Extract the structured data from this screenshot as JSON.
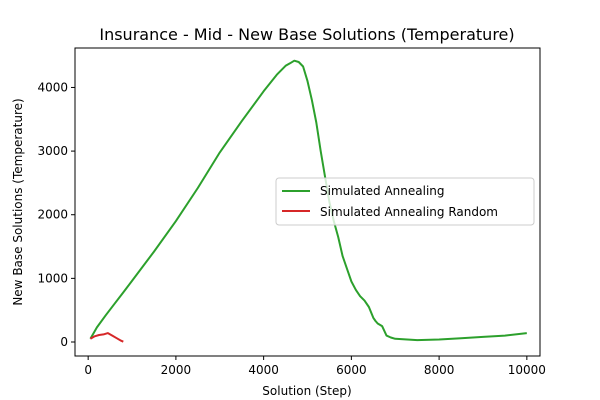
{
  "chart_data": {
    "type": "line",
    "title": "Insurance - Mid - New Base Solutions (Temperature)",
    "xlabel": "Solution (Step)",
    "ylabel": "New Base Solutions (Temperature)",
    "xlim": [
      -300,
      10300
    ],
    "ylim": [
      -220,
      4620
    ],
    "xticks": [
      0,
      2000,
      4000,
      6000,
      8000,
      10000
    ],
    "yticks": [
      0,
      1000,
      2000,
      3000,
      4000
    ],
    "grid": false,
    "legend_position": "center-right",
    "series": [
      {
        "name": "Simulated Annealing",
        "color": "#2ca02c",
        "x": [
          50,
          200,
          400,
          600,
          800,
          1000,
          1500,
          2000,
          2500,
          3000,
          3500,
          4000,
          4300,
          4500,
          4600,
          4700,
          4800,
          4900,
          5000,
          5100,
          5200,
          5300,
          5400,
          5500,
          5600,
          5700,
          5800,
          5900,
          6000,
          6100,
          6200,
          6300,
          6400,
          6500,
          6550,
          6600,
          6700,
          6800,
          6900,
          7000,
          7500,
          8000,
          8500,
          9000,
          9500,
          10000
        ],
        "y": [
          50,
          230,
          420,
          600,
          780,
          960,
          1420,
          1900,
          2420,
          2980,
          3470,
          3940,
          4200,
          4340,
          4380,
          4420,
          4400,
          4330,
          4100,
          3800,
          3450,
          3000,
          2600,
          2200,
          1900,
          1650,
          1350,
          1150,
          950,
          820,
          720,
          650,
          550,
          380,
          330,
          290,
          250,
          100,
          70,
          50,
          30,
          40,
          60,
          80,
          100,
          140
        ]
      },
      {
        "name": "Simulated Annealing Random",
        "color": "#d62728",
        "x": [
          50,
          150,
          250,
          350,
          450,
          550,
          650,
          750,
          800
        ],
        "y": [
          50,
          90,
          110,
          120,
          140,
          100,
          60,
          20,
          5
        ]
      }
    ]
  }
}
